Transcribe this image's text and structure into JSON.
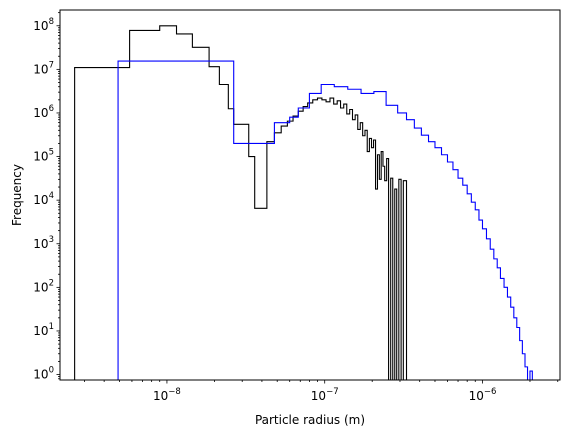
{
  "chart_data": {
    "type": "histogram",
    "xscale": "log",
    "yscale": "log",
    "xlabel": "Particle radius (m)",
    "ylabel": "Frequency",
    "xlim": [
      2.1e-09,
      3.1e-06
    ],
    "ylim": [
      0.75,
      230000000.0
    ],
    "grid": false,
    "x_ticks": [
      {
        "value": 1e-08,
        "base": "10",
        "exp": "−8"
      },
      {
        "value": 1e-07,
        "base": "10",
        "exp": "−7"
      },
      {
        "value": 1e-06,
        "base": "10",
        "exp": "−6"
      }
    ],
    "y_ticks": [
      {
        "value": 1,
        "base": "10",
        "exp": "0"
      },
      {
        "value": 10,
        "base": "10",
        "exp": "1"
      },
      {
        "value": 100,
        "base": "10",
        "exp": "2"
      },
      {
        "value": 1000,
        "base": "10",
        "exp": "3"
      },
      {
        "value": 10000,
        "base": "10",
        "exp": "4"
      },
      {
        "value": 100000,
        "base": "10",
        "exp": "5"
      },
      {
        "value": 1000000,
        "base": "10",
        "exp": "6"
      },
      {
        "value": 10000000,
        "base": "10",
        "exp": "7"
      },
      {
        "value": 100000000,
        "base": "10",
        "exp": "8"
      }
    ],
    "series": [
      {
        "color": "#000000",
        "style": "step",
        "x": [
          2.6e-09,
          5.8e-09,
          9e-09,
          1.15e-08,
          1.45e-08,
          1.85e-08,
          2.15e-08,
          2.45e-08,
          2.65e-08,
          3.3e-08,
          3.6e-08,
          4.3e-08,
          4.8e-08,
          5.3e-08,
          5.8e-08,
          6.3e-08,
          6.8e-08,
          7.3e-08,
          7.8e-08,
          8.4e-08,
          9e-08,
          9.6e-08,
          1.02e-07,
          1.08e-07,
          1.14e-07,
          1.2e-07,
          1.26e-07,
          1.32e-07,
          1.38e-07,
          1.44e-07,
          1.5e-07,
          1.56e-07,
          1.62e-07,
          1.68e-07,
          1.74e-07,
          1.8e-07,
          1.86e-07,
          1.92e-07,
          1.98e-07,
          2.04e-07,
          2.1e-07,
          2.16e-07,
          2.22e-07,
          2.28e-07,
          2.34e-07,
          2.4e-07,
          2.47e-07,
          2.54e-07,
          2.62e-07,
          2.7e-07,
          2.78e-07,
          2.86e-07,
          2.95e-07,
          3.05e-07,
          3.15e-07,
          3.3e-07
        ],
        "y": [
          11000000.0,
          78000000.0,
          100000000.0,
          65000000.0,
          32000000.0,
          11500000.0,
          4500000.0,
          1250000.0,
          550000.0,
          100000.0,
          6500.0,
          220000.0,
          350000.0,
          500000.0,
          650000.0,
          850000.0,
          1100000.0,
          1400000.0,
          1700000.0,
          2000000.0,
          2200000.0,
          2000000.0,
          1800000.0,
          2200000.0,
          1600000.0,
          1900000.0,
          1300000.0,
          1600000.0,
          950000.0,
          1200000.0,
          700000.0,
          900000.0,
          420000.0,
          600000.0,
          300000.0,
          400000.0,
          130000.0,
          260000.0,
          160000.0,
          240000.0,
          18000.0,
          110000.0,
          30000.0,
          130000.0,
          60000.0,
          28000.0,
          90000.0,
          0.5,
          32000.0,
          0.5,
          18000.0,
          0.5,
          30000.0,
          0.5,
          28000.0
        ]
      },
      {
        "color": "#0000ff",
        "style": "step",
        "x": [
          4.9e-09,
          2.65e-08,
          4.8e-08,
          6e-08,
          6.8e-08,
          8e-08,
          9.5e-08,
          1.15e-07,
          1.4e-07,
          1.7e-07,
          2.05e-07,
          2.45e-07,
          2.9e-07,
          3.3e-07,
          3.7e-07,
          4.1e-07,
          4.55e-07,
          5e-07,
          5.5e-07,
          6e-07,
          6.5e-07,
          7e-07,
          7.5e-07,
          8e-07,
          8.5e-07,
          9e-07,
          9.5e-07,
          1e-06,
          1.06e-06,
          1.12e-06,
          1.18e-06,
          1.24e-06,
          1.3e-06,
          1.37e-06,
          1.44e-06,
          1.51e-06,
          1.58e-06,
          1.65e-06,
          1.72e-06,
          1.79e-06,
          1.86e-06,
          1.93e-06,
          2e-06,
          2.07e-06,
          2.14e-06,
          2.21e-06,
          2.28e-06
        ],
        "y": [
          15500000.0,
          200000.0,
          600000.0,
          800000.0,
          1300000.0,
          2800000.0,
          4500000.0,
          4000000.0,
          3500000.0,
          2800000.0,
          3100000.0,
          1500000.0,
          1000000.0,
          700000.0,
          450000.0,
          310000.0,
          220000.0,
          160000.0,
          110000.0,
          75000.0,
          50000.0,
          32000.0,
          22000.0,
          14000.0,
          9000.0,
          6000.0,
          3500.0,
          2200.0,
          1300.0,
          750.0,
          450.0,
          280.0,
          160.0,
          100.0,
          60.0,
          35.0,
          20.0,
          12.0,
          6.0,
          3.0,
          1.5,
          0.5,
          1.2,
          0.5,
          0.5,
          0.5
        ]
      }
    ]
  }
}
